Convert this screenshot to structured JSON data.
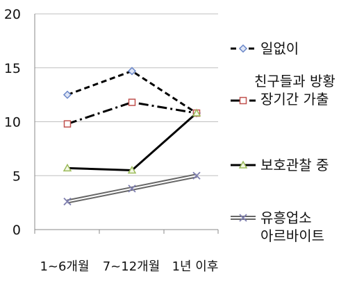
{
  "chart_data": {
    "type": "line",
    "title": "",
    "xlabel": "",
    "ylabel": "",
    "categories": [
      "1~6개월",
      "7~12개월",
      "1년 이후"
    ],
    "ylim": [
      0,
      20
    ],
    "yticks": [
      0,
      5,
      10,
      15,
      20
    ],
    "grid": "horizontal",
    "legend": "right",
    "series": [
      {
        "name": "일없이",
        "values": [
          12.5,
          14.7,
          10.8
        ],
        "color": "#6a86c8",
        "line": "dashed",
        "marker": "diamond"
      },
      {
        "name": "친구들과 방황 장기간 가출",
        "values": [
          9.8,
          11.8,
          10.8
        ],
        "color": "#c0504d",
        "line": "dashdot",
        "marker": "square"
      },
      {
        "name": "보호관찰 중",
        "values": [
          5.7,
          5.5,
          10.8
        ],
        "color": "#9bbb59",
        "line": "solid",
        "marker": "triangle"
      },
      {
        "name": "유흥업소 아르바이트",
        "values": [
          2.6,
          3.8,
          5.0
        ],
        "color": "#7f7fb0",
        "line": "double",
        "marker": "x"
      }
    ]
  }
}
